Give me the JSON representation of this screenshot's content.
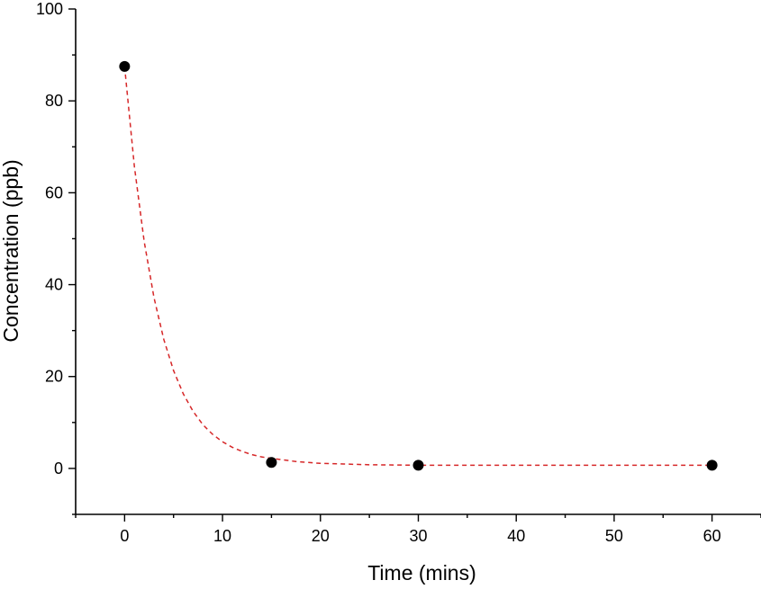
{
  "chart_data": {
    "type": "scatter",
    "title": "",
    "xlabel": "Time (mins)",
    "ylabel": "Concentration (ppb)",
    "xlim": [
      -5,
      65
    ],
    "ylim": [
      -10,
      100
    ],
    "x_ticks": [
      0,
      10,
      20,
      30,
      40,
      50,
      60
    ],
    "y_ticks": [
      0,
      20,
      40,
      60,
      80,
      100
    ],
    "grid": false,
    "series": [
      {
        "type": "scatter",
        "x": [
          0,
          15,
          30,
          60
        ],
        "y": [
          87.5,
          1.3,
          0.7,
          0.7
        ],
        "color": "#000000"
      },
      {
        "type": "line",
        "style": "dashed",
        "fit": "exponential decay",
        "x": [
          0,
          1,
          2,
          3,
          4,
          5,
          6,
          7,
          8,
          9,
          10,
          11,
          12,
          13,
          14,
          15,
          17.5,
          20,
          25,
          30,
          40,
          50,
          60
        ],
        "y": [
          87.5,
          65.7,
          49.4,
          37.2,
          28.1,
          21.3,
          16.2,
          12.4,
          9.5,
          7.4,
          5.8,
          4.6,
          3.7,
          3.0,
          2.5,
          2.2,
          1.5,
          1.1,
          0.8,
          0.7,
          0.7,
          0.7,
          0.7
        ],
        "color": "#d62728"
      }
    ]
  }
}
